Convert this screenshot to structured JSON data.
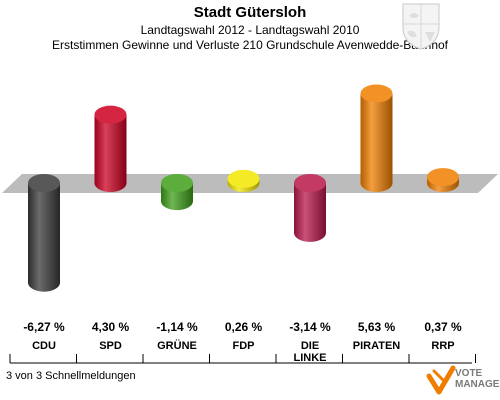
{
  "header": {
    "title": "Stadt Gütersloh",
    "subtitle": "Landtagswahl 2012 - Landtagswahl 2010",
    "description": "Erststimmen Gewinne und Verluste 210 Grundschule Avenwedde-Bahnhof"
  },
  "footer": {
    "status": "3 von 3 Schnellmeldungen"
  },
  "logo": {
    "line1": "VOTE",
    "line2": "MANAGER"
  },
  "chart_data": {
    "type": "bar",
    "categories": [
      "CDU",
      "SPD",
      "GRÜNE",
      "FDP",
      "DIE LINKE",
      "PIRATEN",
      "RRP"
    ],
    "value_labels": [
      "-6,27 %",
      "4,30 %",
      "-1,14 %",
      "0,26 %",
      "-3,14 %",
      "5,63 %",
      "0,37 %"
    ],
    "values": [
      -6.27,
      4.3,
      -1.14,
      0.26,
      -3.14,
      5.63,
      0.37
    ],
    "unit": "%",
    "colors": [
      "#3a3a3a",
      "#cc0022",
      "#3f9f1a",
      "#f2e600",
      "#b8174a",
      "#f07d00",
      "#f07d00"
    ],
    "grid": false,
    "legend": "none"
  }
}
